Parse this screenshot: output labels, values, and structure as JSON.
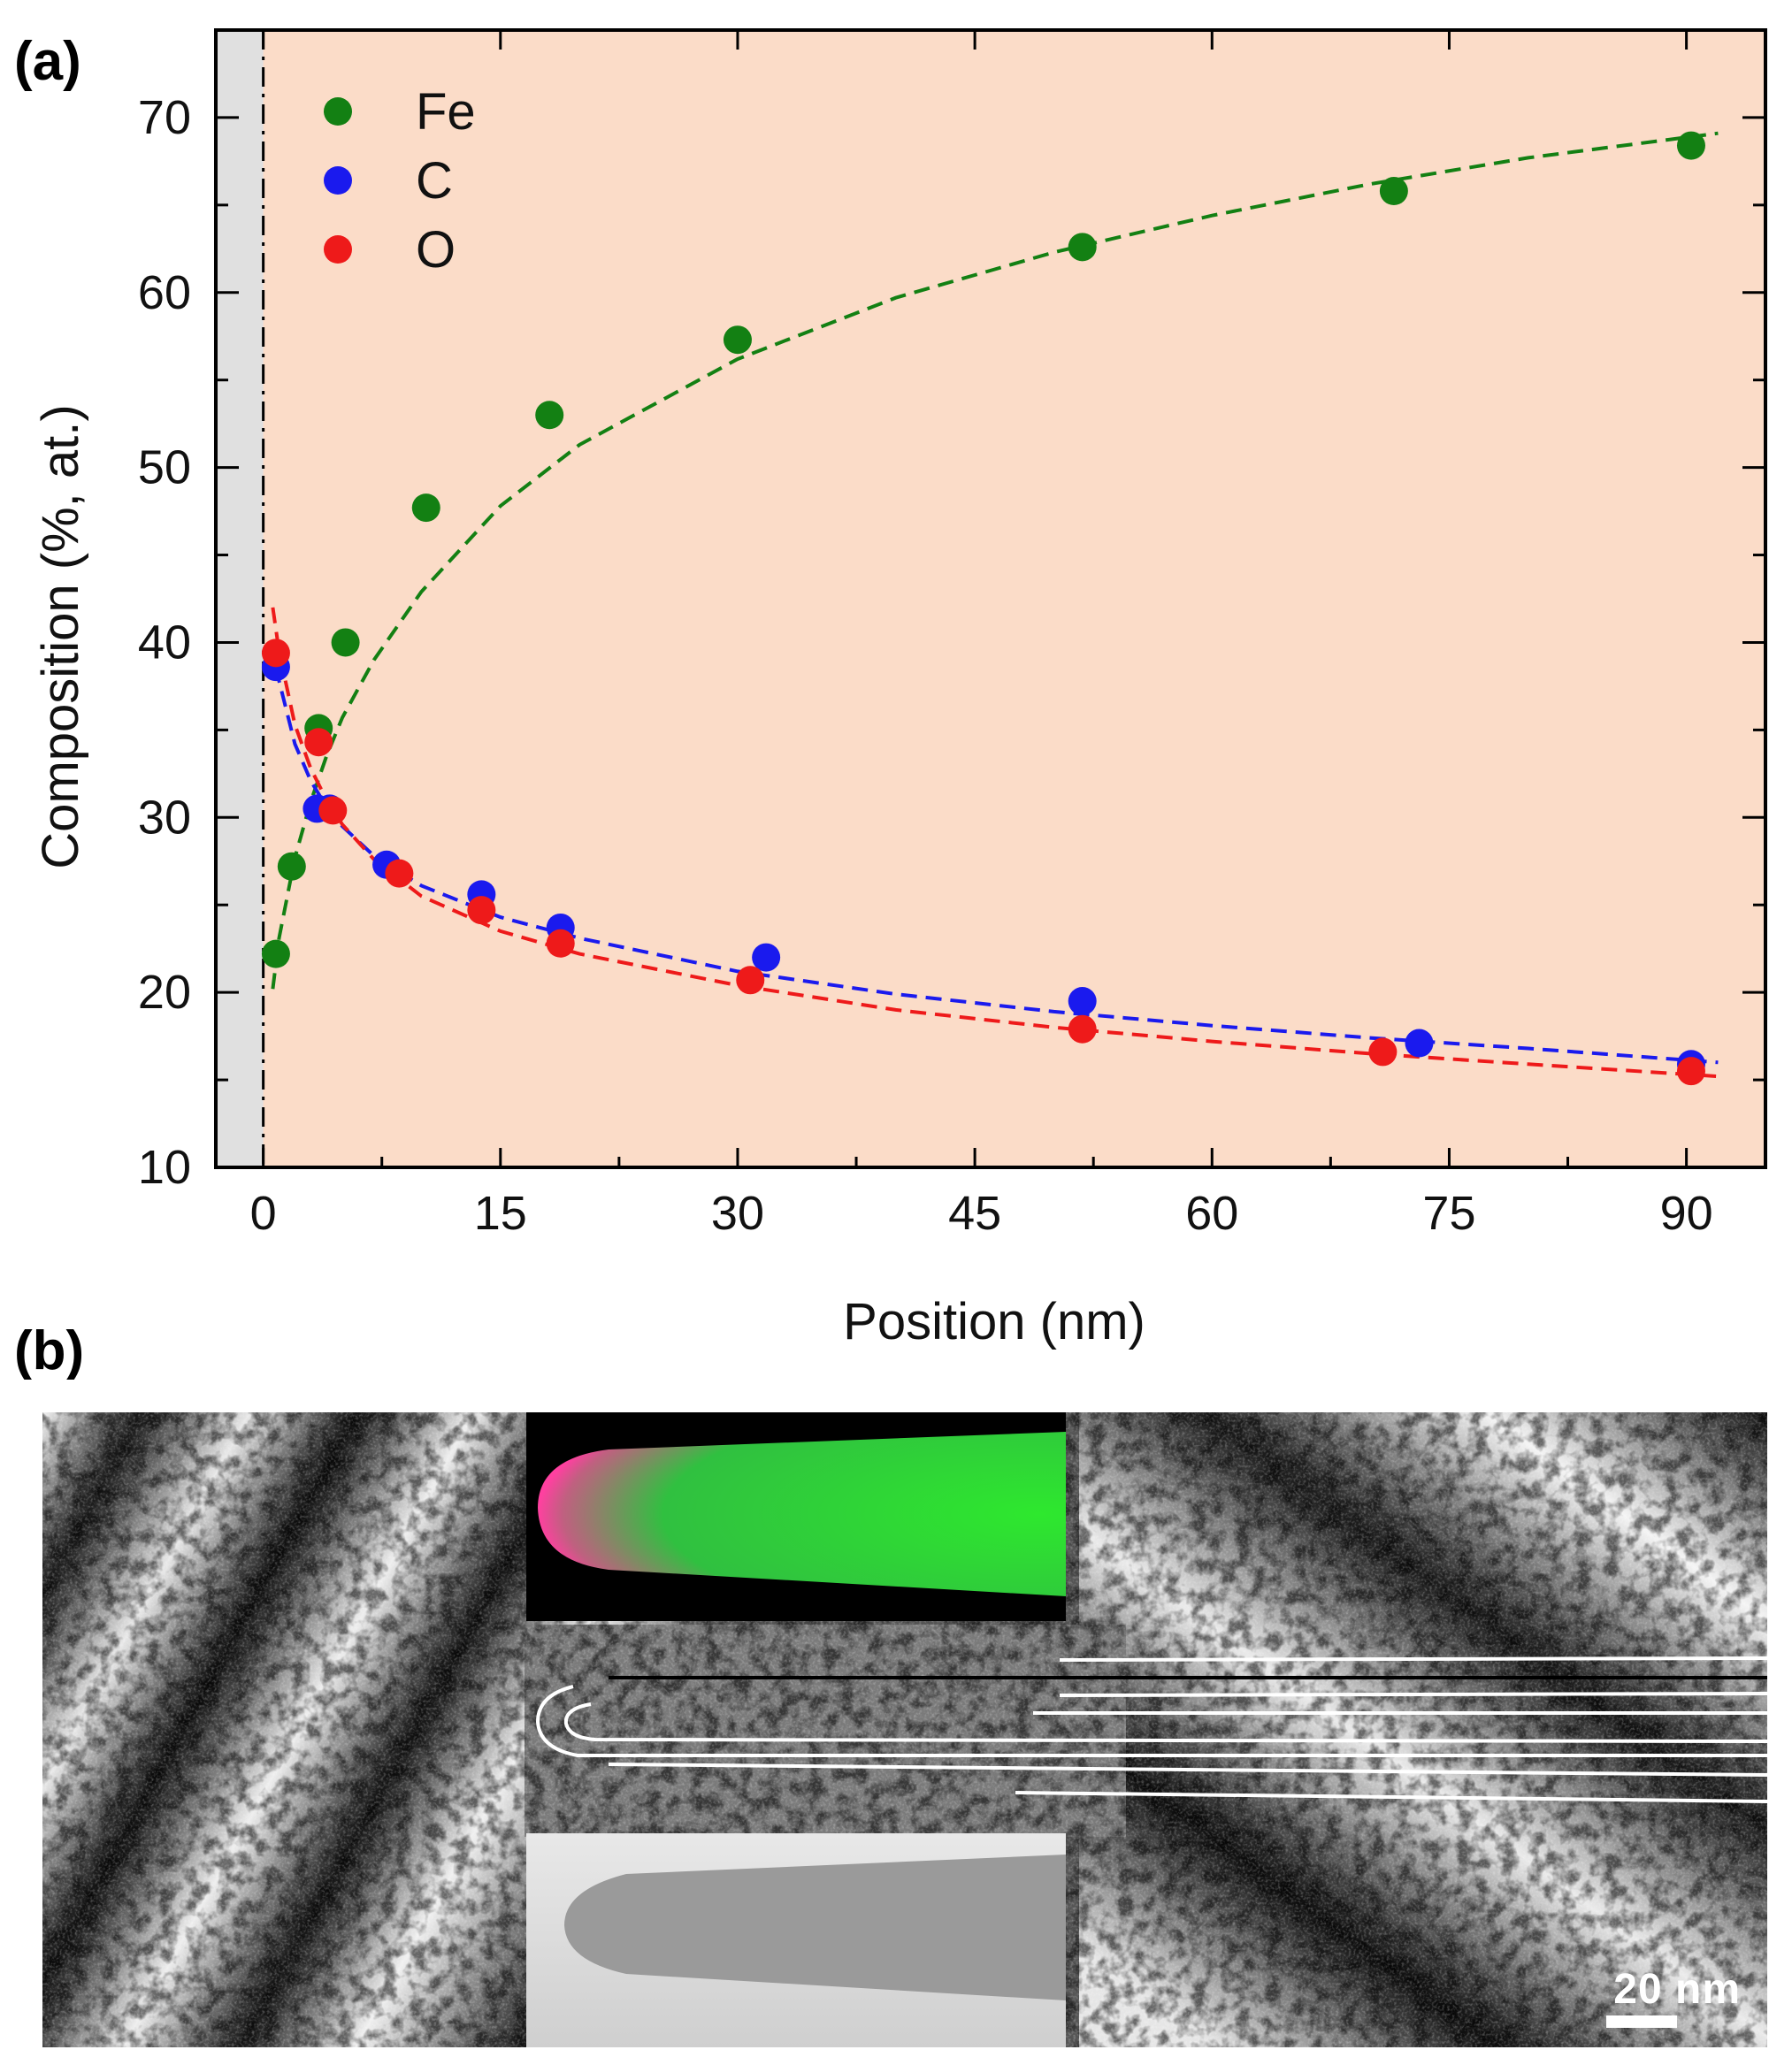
{
  "panel_a_label": "(a)",
  "panel_b_label": "(b)",
  "chart_data": {
    "type": "scatter",
    "title": "",
    "xlabel": "Position (nm)",
    "ylabel": "Composition (%, at.)",
    "xlim": [
      -3,
      95
    ],
    "ylim": [
      10,
      75
    ],
    "x_ticks": [
      0,
      15,
      30,
      45,
      60,
      75,
      90
    ],
    "y_ticks": [
      10,
      20,
      30,
      40,
      50,
      60,
      70
    ],
    "grey_region_x": [
      -3,
      0
    ],
    "interface_x": 0,
    "legend_position": "top-left",
    "background_color": "#fbdcc8",
    "series": [
      {
        "name": "Fe",
        "color": "#138013",
        "points": [
          [
            0.8,
            22.2
          ],
          [
            1.8,
            27.2
          ],
          [
            3.5,
            35.1
          ],
          [
            5.2,
            40.0
          ],
          [
            10.3,
            47.7
          ],
          [
            18.1,
            53.0
          ],
          [
            30.0,
            57.3
          ],
          [
            51.8,
            62.6
          ],
          [
            71.5,
            65.8
          ],
          [
            90.3,
            68.4
          ]
        ]
      },
      {
        "name": "C",
        "color": "#1a1aee",
        "points": [
          [
            0.8,
            38.6
          ],
          [
            3.4,
            30.5
          ],
          [
            4.2,
            30.5
          ],
          [
            7.8,
            27.3
          ],
          [
            13.8,
            25.6
          ],
          [
            18.8,
            23.7
          ],
          [
            31.8,
            22.0
          ],
          [
            51.8,
            19.5
          ],
          [
            73.1,
            17.1
          ],
          [
            90.3,
            15.9
          ]
        ]
      },
      {
        "name": "O",
        "color": "#ee1a1a",
        "points": [
          [
            0.8,
            39.4
          ],
          [
            3.5,
            34.3
          ],
          [
            4.4,
            30.4
          ],
          [
            8.6,
            26.8
          ],
          [
            13.8,
            24.7
          ],
          [
            18.8,
            22.8
          ],
          [
            30.8,
            20.7
          ],
          [
            51.8,
            17.9
          ],
          [
            70.8,
            16.6
          ],
          [
            90.3,
            15.5
          ]
        ]
      }
    ],
    "fits": [
      {
        "series": "Fe",
        "style": "dashed",
        "points": [
          [
            0.6,
            20.2
          ],
          [
            1,
            23.1
          ],
          [
            2,
            27.7
          ],
          [
            3,
            30.9
          ],
          [
            4,
            33.5
          ],
          [
            5,
            35.7
          ],
          [
            7,
            39.0
          ],
          [
            10,
            42.9
          ],
          [
            15,
            47.8
          ],
          [
            20,
            51.3
          ],
          [
            30,
            56.2
          ],
          [
            40,
            59.7
          ],
          [
            50,
            62.3
          ],
          [
            60,
            64.4
          ],
          [
            70,
            66.2
          ],
          [
            80,
            67.7
          ],
          [
            92,
            69.1
          ]
        ]
      },
      {
        "series": "C",
        "style": "dashed",
        "points": [
          [
            0.6,
            40.0
          ],
          [
            1,
            37.8
          ],
          [
            2,
            34.2
          ],
          [
            3,
            32.1
          ],
          [
            4,
            30.6
          ],
          [
            5,
            29.5
          ],
          [
            7,
            27.8
          ],
          [
            10,
            26.1
          ],
          [
            15,
            24.3
          ],
          [
            20,
            23.1
          ],
          [
            30,
            21.2
          ],
          [
            40,
            19.9
          ],
          [
            50,
            18.9
          ],
          [
            60,
            18.1
          ],
          [
            70,
            17.4
          ],
          [
            80,
            16.8
          ],
          [
            92,
            16.0
          ]
        ]
      },
      {
        "series": "O",
        "style": "dashed",
        "points": [
          [
            0.6,
            42.0
          ],
          [
            1,
            39.5
          ],
          [
            2,
            35.3
          ],
          [
            3,
            32.8
          ],
          [
            4,
            31.0
          ],
          [
            5,
            29.6
          ],
          [
            7,
            27.6
          ],
          [
            10,
            25.5
          ],
          [
            15,
            23.5
          ],
          [
            20,
            22.2
          ],
          [
            30,
            20.4
          ],
          [
            40,
            19.0
          ],
          [
            50,
            18.0
          ],
          [
            60,
            17.2
          ],
          [
            70,
            16.5
          ],
          [
            80,
            15.9
          ],
          [
            92,
            15.2
          ]
        ]
      }
    ]
  },
  "micrograph": {
    "scale_bar_label": "20 nm"
  }
}
